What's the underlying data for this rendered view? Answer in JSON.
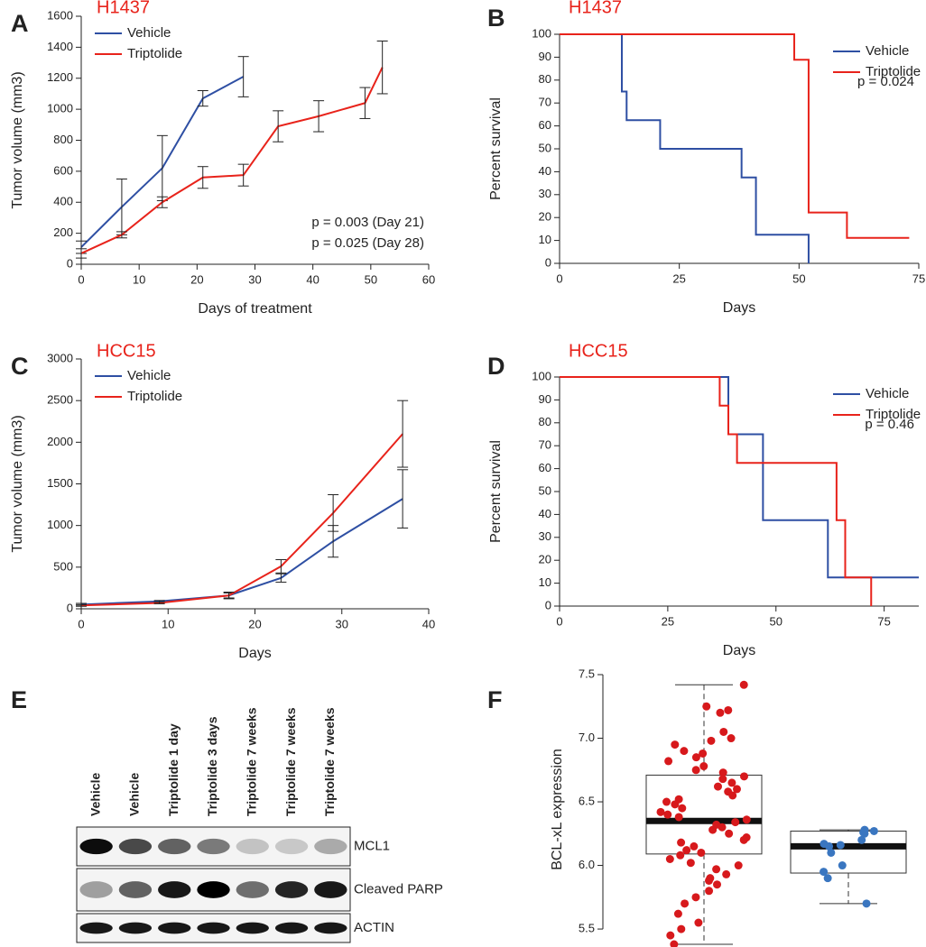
{
  "chart_data": [
    {
      "type": "line",
      "panel": "A",
      "title": "H1437",
      "x_label": "Days of treatment",
      "y_label": "Tumor volume (mm3)",
      "xlim": [
        0,
        60
      ],
      "xticks": [
        0,
        10,
        20,
        30,
        40,
        50,
        60
      ],
      "ylim": [
        0,
        1600
      ],
      "yticks": [
        0,
        200,
        400,
        600,
        800,
        1000,
        1200,
        1400,
        1600
      ],
      "legend": "upper left",
      "annotations": [
        "p = 0.003 (Day 21)",
        "p = 0.025 (Day 28)"
      ],
      "series": [
        {
          "name": "Vehicle",
          "color": "#2e4fa3",
          "x": [
            0,
            7,
            14,
            21,
            28
          ],
          "values": [
            110,
            370,
            620,
            1070,
            1210
          ],
          "errors": [
            40,
            180,
            210,
            50,
            130
          ]
        },
        {
          "name": "Triptolide",
          "color": "#e8231b",
          "x": [
            0,
            7,
            14,
            21,
            28,
            34,
            41,
            49,
            52
          ],
          "values": [
            70,
            190,
            400,
            560,
            575,
            890,
            955,
            1040,
            1270
          ],
          "errors": [
            30,
            20,
            35,
            70,
            70,
            100,
            100,
            100,
            170
          ]
        }
      ]
    },
    {
      "type": "step",
      "panel": "B",
      "title": "H1437",
      "x_label": "Days",
      "y_label": "Percent survival",
      "xlim": [
        0,
        75
      ],
      "xticks": [
        0,
        25,
        50,
        75
      ],
      "ylim": [
        0,
        100
      ],
      "yticks": [
        0,
        10,
        20,
        30,
        40,
        50,
        60,
        70,
        80,
        90,
        100
      ],
      "legend": "upper right",
      "annotations": [
        "p = 0.024"
      ],
      "series": [
        {
          "name": "Vehicle",
          "color": "#2e4fa3",
          "x": [
            0,
            13,
            14,
            21,
            38,
            41,
            52
          ],
          "values": [
            100,
            75,
            62.5,
            50,
            37.5,
            12.5,
            0
          ]
        },
        {
          "name": "Triptolide",
          "color": "#e8231b",
          "x": [
            0,
            49,
            52,
            60,
            73
          ],
          "values": [
            100,
            88.9,
            22.2,
            11.1,
            11.1
          ]
        }
      ]
    },
    {
      "type": "line",
      "panel": "C",
      "title": "HCC15",
      "x_label": "Days",
      "y_label": "Tumor volume (mm3)",
      "xlim": [
        0,
        40
      ],
      "xticks": [
        0,
        10,
        20,
        30,
        40
      ],
      "ylim": [
        0,
        3000
      ],
      "yticks": [
        0,
        500,
        1000,
        1500,
        2000,
        2500,
        3000
      ],
      "legend": "upper left",
      "series": [
        {
          "name": "Vehicle",
          "color": "#2e4fa3",
          "x": [
            0,
            9,
            17,
            23,
            29,
            37
          ],
          "values": [
            50,
            90,
            160,
            370,
            810,
            1320
          ],
          "errors": [
            15,
            10,
            30,
            50,
            190,
            350
          ]
        },
        {
          "name": "Triptolide",
          "color": "#e8231b",
          "x": [
            0,
            9,
            17,
            23,
            29,
            37
          ],
          "values": [
            40,
            70,
            160,
            510,
            1150,
            2100
          ],
          "errors": [
            10,
            10,
            40,
            80,
            220,
            400
          ]
        }
      ]
    },
    {
      "type": "step",
      "panel": "D",
      "title": "HCC15",
      "x_label": "Days",
      "y_label": "Percent survival",
      "xlim": [
        0,
        83
      ],
      "xticks": [
        0,
        25,
        50,
        75
      ],
      "ylim": [
        0,
        100
      ],
      "yticks": [
        0,
        10,
        20,
        30,
        40,
        50,
        60,
        70,
        80,
        90,
        100
      ],
      "legend": "upper right",
      "annotations": [
        "p = 0.46"
      ],
      "series": [
        {
          "name": "Vehicle",
          "color": "#2e4fa3",
          "x": [
            0,
            39,
            47,
            62,
            83
          ],
          "values": [
            100,
            75,
            37.5,
            12.5,
            12.5
          ]
        },
        {
          "name": "Triptolide",
          "color": "#e8231b",
          "x": [
            0,
            37,
            39,
            41,
            64,
            66,
            72
          ],
          "values": [
            100,
            87.5,
            75,
            62.5,
            37.5,
            12.5,
            0
          ]
        }
      ]
    },
    {
      "type": "box",
      "panel": "F",
      "y_label": "BCL-xL expression",
      "ylim": [
        5.38,
        7.5
      ],
      "yticks": [
        5.5,
        {
          "value": 6,
          "label": "6.0"
        },
        6.5,
        {
          "value": 7,
          "label": "7.0"
        },
        7.5
      ],
      "boxes": [
        {
          "color": "#d7191c",
          "whisker_low": 5.38,
          "q1": 6.09,
          "median": 6.35,
          "q3": 6.71,
          "whisker_high": 7.42,
          "points": [
            7.42,
            7.25,
            7.22,
            7.2,
            7.05,
            7.0,
            6.98,
            6.95,
            6.9,
            6.88,
            6.85,
            6.82,
            6.78,
            6.75,
            6.73,
            6.7,
            6.68,
            6.65,
            6.62,
            6.6,
            6.58,
            6.55,
            6.52,
            6.5,
            6.48,
            6.45,
            6.42,
            6.4,
            6.38,
            6.36,
            6.34,
            6.32,
            6.3,
            6.28,
            6.25,
            6.22,
            6.2,
            6.18,
            6.15,
            6.12,
            6.1,
            6.08,
            6.05,
            6.02,
            6.0,
            5.97,
            5.93,
            5.9,
            5.88,
            5.85,
            5.8,
            5.75,
            5.7,
            5.62,
            5.55,
            5.5,
            5.45,
            5.38
          ]
        },
        {
          "color": "#3a76c0",
          "whisker_low": 5.7,
          "q1": 5.94,
          "median": 6.15,
          "q3": 6.27,
          "whisker_high": 6.28,
          "points": [
            6.28,
            6.27,
            6.26,
            6.25,
            6.2,
            6.17,
            6.16,
            6.15,
            6.1,
            6.0,
            5.95,
            5.9,
            5.7
          ]
        }
      ]
    }
  ],
  "blot": {
    "panel": "E",
    "lanes": [
      "Vehicle",
      "Vehicle",
      "Triptolide 1 day",
      "Triptolide 3 days",
      "Triptolide 7 weeks",
      "Triptolide 7 weeks",
      "Triptolide 7 weeks"
    ],
    "rows": [
      {
        "label": "MCL1",
        "intensity": [
          0.95,
          0.7,
          0.6,
          0.5,
          0.2,
          0.18,
          0.3
        ]
      },
      {
        "label": "Cleaved PARP",
        "intensity": [
          0.35,
          0.6,
          0.9,
          1.0,
          0.55,
          0.85,
          0.9
        ]
      },
      {
        "label": "ACTIN",
        "intensity": [
          0.9,
          0.9,
          0.9,
          0.9,
          0.9,
          0.9,
          0.9
        ]
      }
    ]
  }
}
